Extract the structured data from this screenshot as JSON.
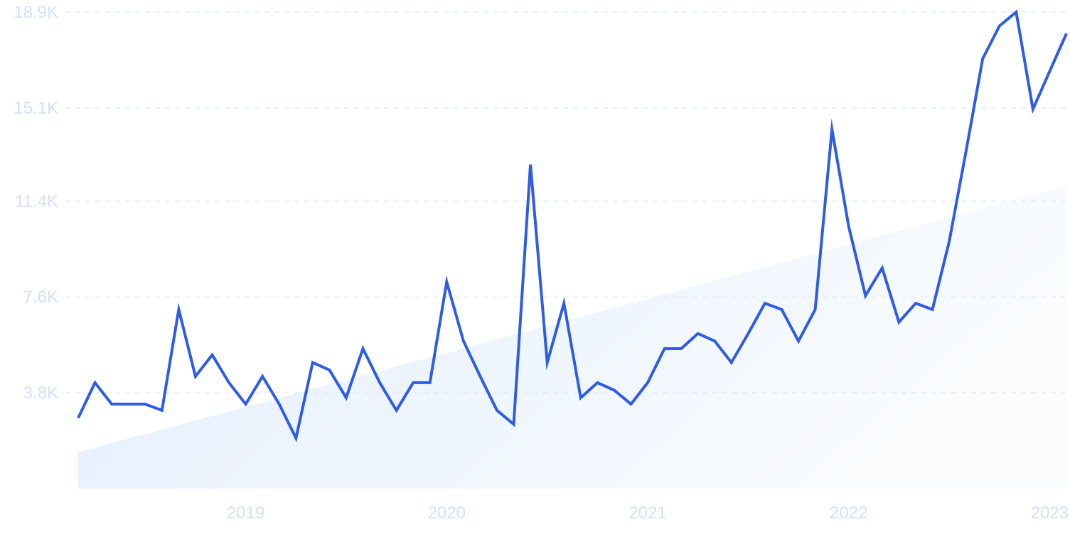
{
  "colors": {
    "line": "#2f5ce4",
    "tick_text": "#d4e0f7",
    "grid": "#dce9f2",
    "trend_fill": "#e1edfc"
  },
  "chart_data": {
    "type": "line",
    "title": "",
    "xlabel": "",
    "ylabel": "",
    "grid": true,
    "x_tick_labels": [
      "2019",
      "2020",
      "2021",
      "2022",
      "2023"
    ],
    "y_tick_labels": [
      "3.8K",
      "7.6K",
      "11.4K",
      "15.1K",
      "18.9K"
    ],
    "y_ticks": [
      3800,
      7600,
      11400,
      15100,
      18900
    ],
    "ylim": [
      0,
      18900
    ],
    "xlim": [
      "2018-09",
      "2023-08"
    ],
    "series": [
      {
        "name": "",
        "x": [
          "2018-09",
          "2018-10",
          "2018-11",
          "2018-12",
          "2019-01",
          "2019-02",
          "2019-03",
          "2019-04",
          "2019-05",
          "2019-06",
          "2019-07",
          "2019-08",
          "2019-09",
          "2019-10",
          "2019-11",
          "2019-12",
          "2020-01",
          "2020-02",
          "2020-03",
          "2020-04",
          "2020-05",
          "2020-06",
          "2020-07",
          "2020-08",
          "2020-09",
          "2020-10",
          "2020-11",
          "2020-12",
          "2021-01",
          "2021-02",
          "2021-03",
          "2021-04",
          "2021-05",
          "2021-06",
          "2021-07",
          "2021-08",
          "2021-09",
          "2021-10",
          "2021-11",
          "2021-12",
          "2022-01",
          "2022-02",
          "2022-03",
          "2022-04",
          "2022-05",
          "2022-06",
          "2022-07",
          "2022-08",
          "2022-09",
          "2022-10",
          "2022-11",
          "2022-12",
          "2023-01",
          "2023-02",
          "2023-03",
          "2023-04",
          "2023-05",
          "2023-06",
          "2023-07",
          "2023-08"
        ],
        "y": [
          2800,
          4200,
          3350,
          3350,
          3350,
          3100,
          7100,
          4450,
          5300,
          4200,
          3350,
          4450,
          3350,
          2000,
          5000,
          4700,
          3600,
          5550,
          4200,
          3100,
          4200,
          4200,
          8200,
          5850,
          4450,
          3100,
          2550,
          12850,
          5000,
          7350,
          3600,
          4200,
          3900,
          3350,
          4200,
          5550,
          5550,
          6150,
          5850,
          5000,
          6150,
          7350,
          7100,
          5850,
          7100,
          14250,
          10400,
          7650,
          8750,
          6600,
          7350,
          7100,
          9800,
          13350,
          17050,
          18350,
          18900,
          15050,
          16550,
          18050
        ]
      }
    ],
    "trend_band": {
      "start": {
        "x": "2018-09",
        "y": 1450
      },
      "end": {
        "x": "2023-08",
        "y": 12000
      }
    }
  }
}
